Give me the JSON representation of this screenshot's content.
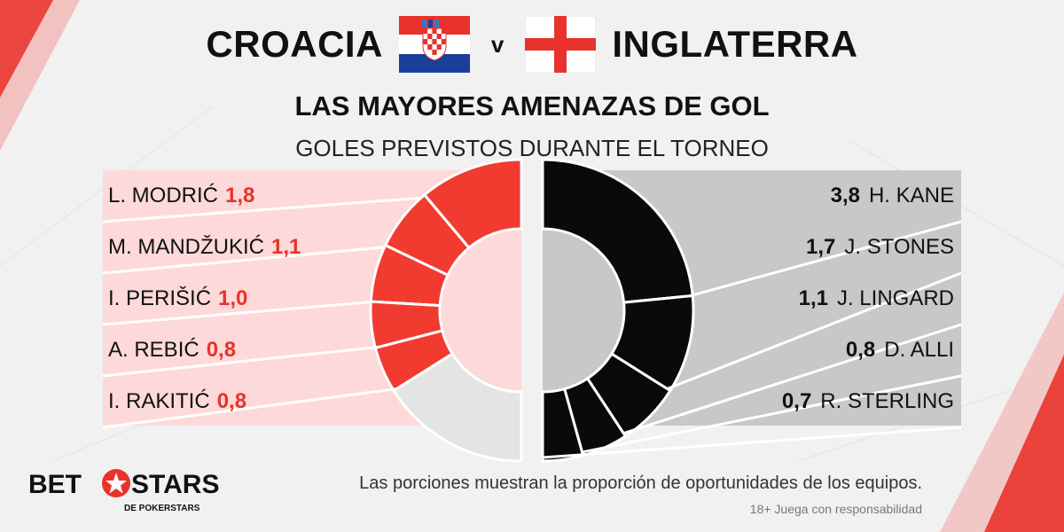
{
  "header": {
    "team_left": "CROACIA",
    "vs": "v",
    "team_right": "INGLATERRA",
    "title": "LAS MAYORES AMENAZAS DE GOL",
    "subtitle": "GOLES PREVISTOS DURANTE EL TORNEO"
  },
  "colors": {
    "croatia_slice": "#f23b30",
    "croatia_panel": "#fdd9d9",
    "croatia_value": "#e8322b",
    "england_slice": "#0a0a0a",
    "england_panel": "#c8c8c8",
    "remainder_slice": "#e4e4e4",
    "accent_corner": "#e8322b"
  },
  "chart_data": [
    {
      "type": "pie",
      "team": "CROACIA",
      "side": "left",
      "series": [
        {
          "name": "L. MODRIĆ",
          "value": 1.8,
          "value_label": "1,8"
        },
        {
          "name": "M. MANDŽUKIĆ",
          "value": 1.1,
          "value_label": "1,1"
        },
        {
          "name": "I. PERIŠIĆ",
          "value": 1.0,
          "value_label": "1,0"
        },
        {
          "name": "A. REBIĆ",
          "value": 0.8,
          "value_label": "0,8"
        },
        {
          "name": "I. RAKITIĆ",
          "value": 0.8,
          "value_label": "0,8"
        }
      ]
    },
    {
      "type": "pie",
      "team": "INGLATERRA",
      "side": "right",
      "series": [
        {
          "name": "H. KANE",
          "value": 3.8,
          "value_label": "3,8"
        },
        {
          "name": "J. STONES",
          "value": 1.7,
          "value_label": "1,7"
        },
        {
          "name": "J. LINGARD",
          "value": 1.1,
          "value_label": "1,1"
        },
        {
          "name": "D. ALLI",
          "value": 0.8,
          "value_label": "0,8"
        },
        {
          "name": "R. STERLING",
          "value": 0.7,
          "value_label": "0,7"
        }
      ]
    }
  ],
  "footer": {
    "note": "Las porciones muestran la proporción de oportunidades de los equipos.",
    "disclaimer": "18+ Juega con responsabilidad",
    "logo_bet": "BET",
    "logo_stars": "STARS",
    "logo_sub": "DE POKERSTARS",
    "logo_icon": "red-star-icon"
  }
}
